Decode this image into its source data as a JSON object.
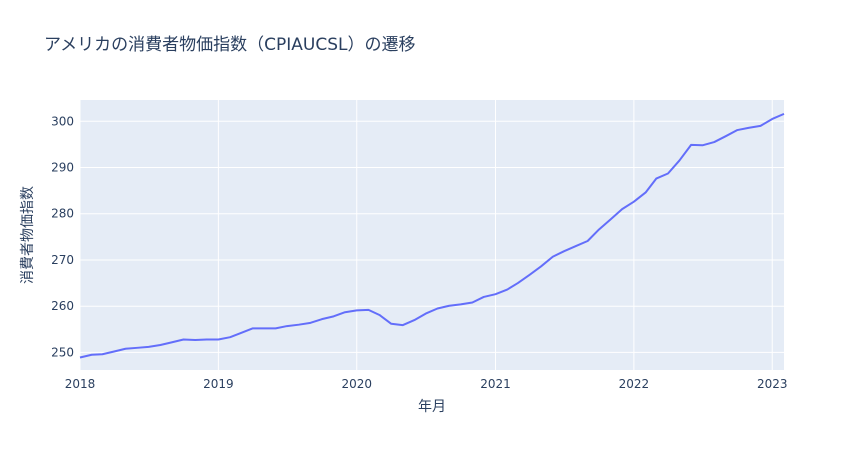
{
  "chart_data": {
    "type": "line",
    "title": "アメリカの消費者物価指数（CPIAUCSL）の遷移",
    "xlabel": "年月",
    "ylabel": "消費者物価指数",
    "x_range": [
      "2018-01-01",
      "2023-02-01"
    ],
    "ylim": [
      246.2,
      304.6
    ],
    "x_ticks": [
      {
        "value": "2018-01-01",
        "label": "2018"
      },
      {
        "value": "2019-01-01",
        "label": "2019"
      },
      {
        "value": "2020-01-01",
        "label": "2020"
      },
      {
        "value": "2021-01-01",
        "label": "2021"
      },
      {
        "value": "2022-01-01",
        "label": "2022"
      },
      {
        "value": "2023-01-01",
        "label": "2023"
      }
    ],
    "y_ticks": [
      250,
      260,
      270,
      280,
      290,
      300
    ],
    "grid": true,
    "line_color": "#636efa",
    "plot_bg": "#e5ecf6",
    "series": [
      {
        "x": [
          "2018-01",
          "2018-02",
          "2018-03",
          "2018-04",
          "2018-05",
          "2018-06",
          "2018-07",
          "2018-08",
          "2018-09",
          "2018-10",
          "2018-11",
          "2018-12",
          "2019-01",
          "2019-02",
          "2019-03",
          "2019-04",
          "2019-05",
          "2019-06",
          "2019-07",
          "2019-08",
          "2019-09",
          "2019-10",
          "2019-11",
          "2019-12",
          "2020-01",
          "2020-02",
          "2020-03",
          "2020-04",
          "2020-05",
          "2020-06",
          "2020-07",
          "2020-08",
          "2020-09",
          "2020-10",
          "2020-11",
          "2020-12",
          "2021-01",
          "2021-02",
          "2021-03",
          "2021-04",
          "2021-05",
          "2021-06",
          "2021-07",
          "2021-08",
          "2021-09",
          "2021-10",
          "2021-11",
          "2021-12",
          "2022-01",
          "2022-02",
          "2022-03",
          "2022-04",
          "2022-05",
          "2022-06",
          "2022-07",
          "2022-08",
          "2022-09",
          "2022-10",
          "2022-11",
          "2022-12",
          "2023-01",
          "2023-02"
        ],
        "values": [
          248.9,
          249.5,
          249.6,
          250.2,
          250.8,
          251.0,
          251.2,
          251.6,
          252.2,
          252.8,
          252.7,
          252.8,
          252.8,
          253.3,
          254.2,
          255.2,
          255.2,
          255.2,
          255.7,
          256.0,
          256.4,
          257.2,
          257.8,
          258.7,
          259.1,
          259.2,
          258.1,
          256.2,
          255.9,
          257.0,
          258.4,
          259.5,
          260.1,
          260.4,
          260.8,
          262.0,
          262.6,
          263.6,
          265.0,
          266.8,
          268.6,
          270.7,
          271.9,
          273.0,
          274.1,
          276.6,
          278.8,
          281.0,
          282.6,
          284.6,
          287.6,
          288.7,
          291.5,
          294.9,
          294.8,
          295.5,
          296.8,
          298.1,
          298.6,
          299.0,
          300.5,
          301.6
        ]
      }
    ]
  }
}
